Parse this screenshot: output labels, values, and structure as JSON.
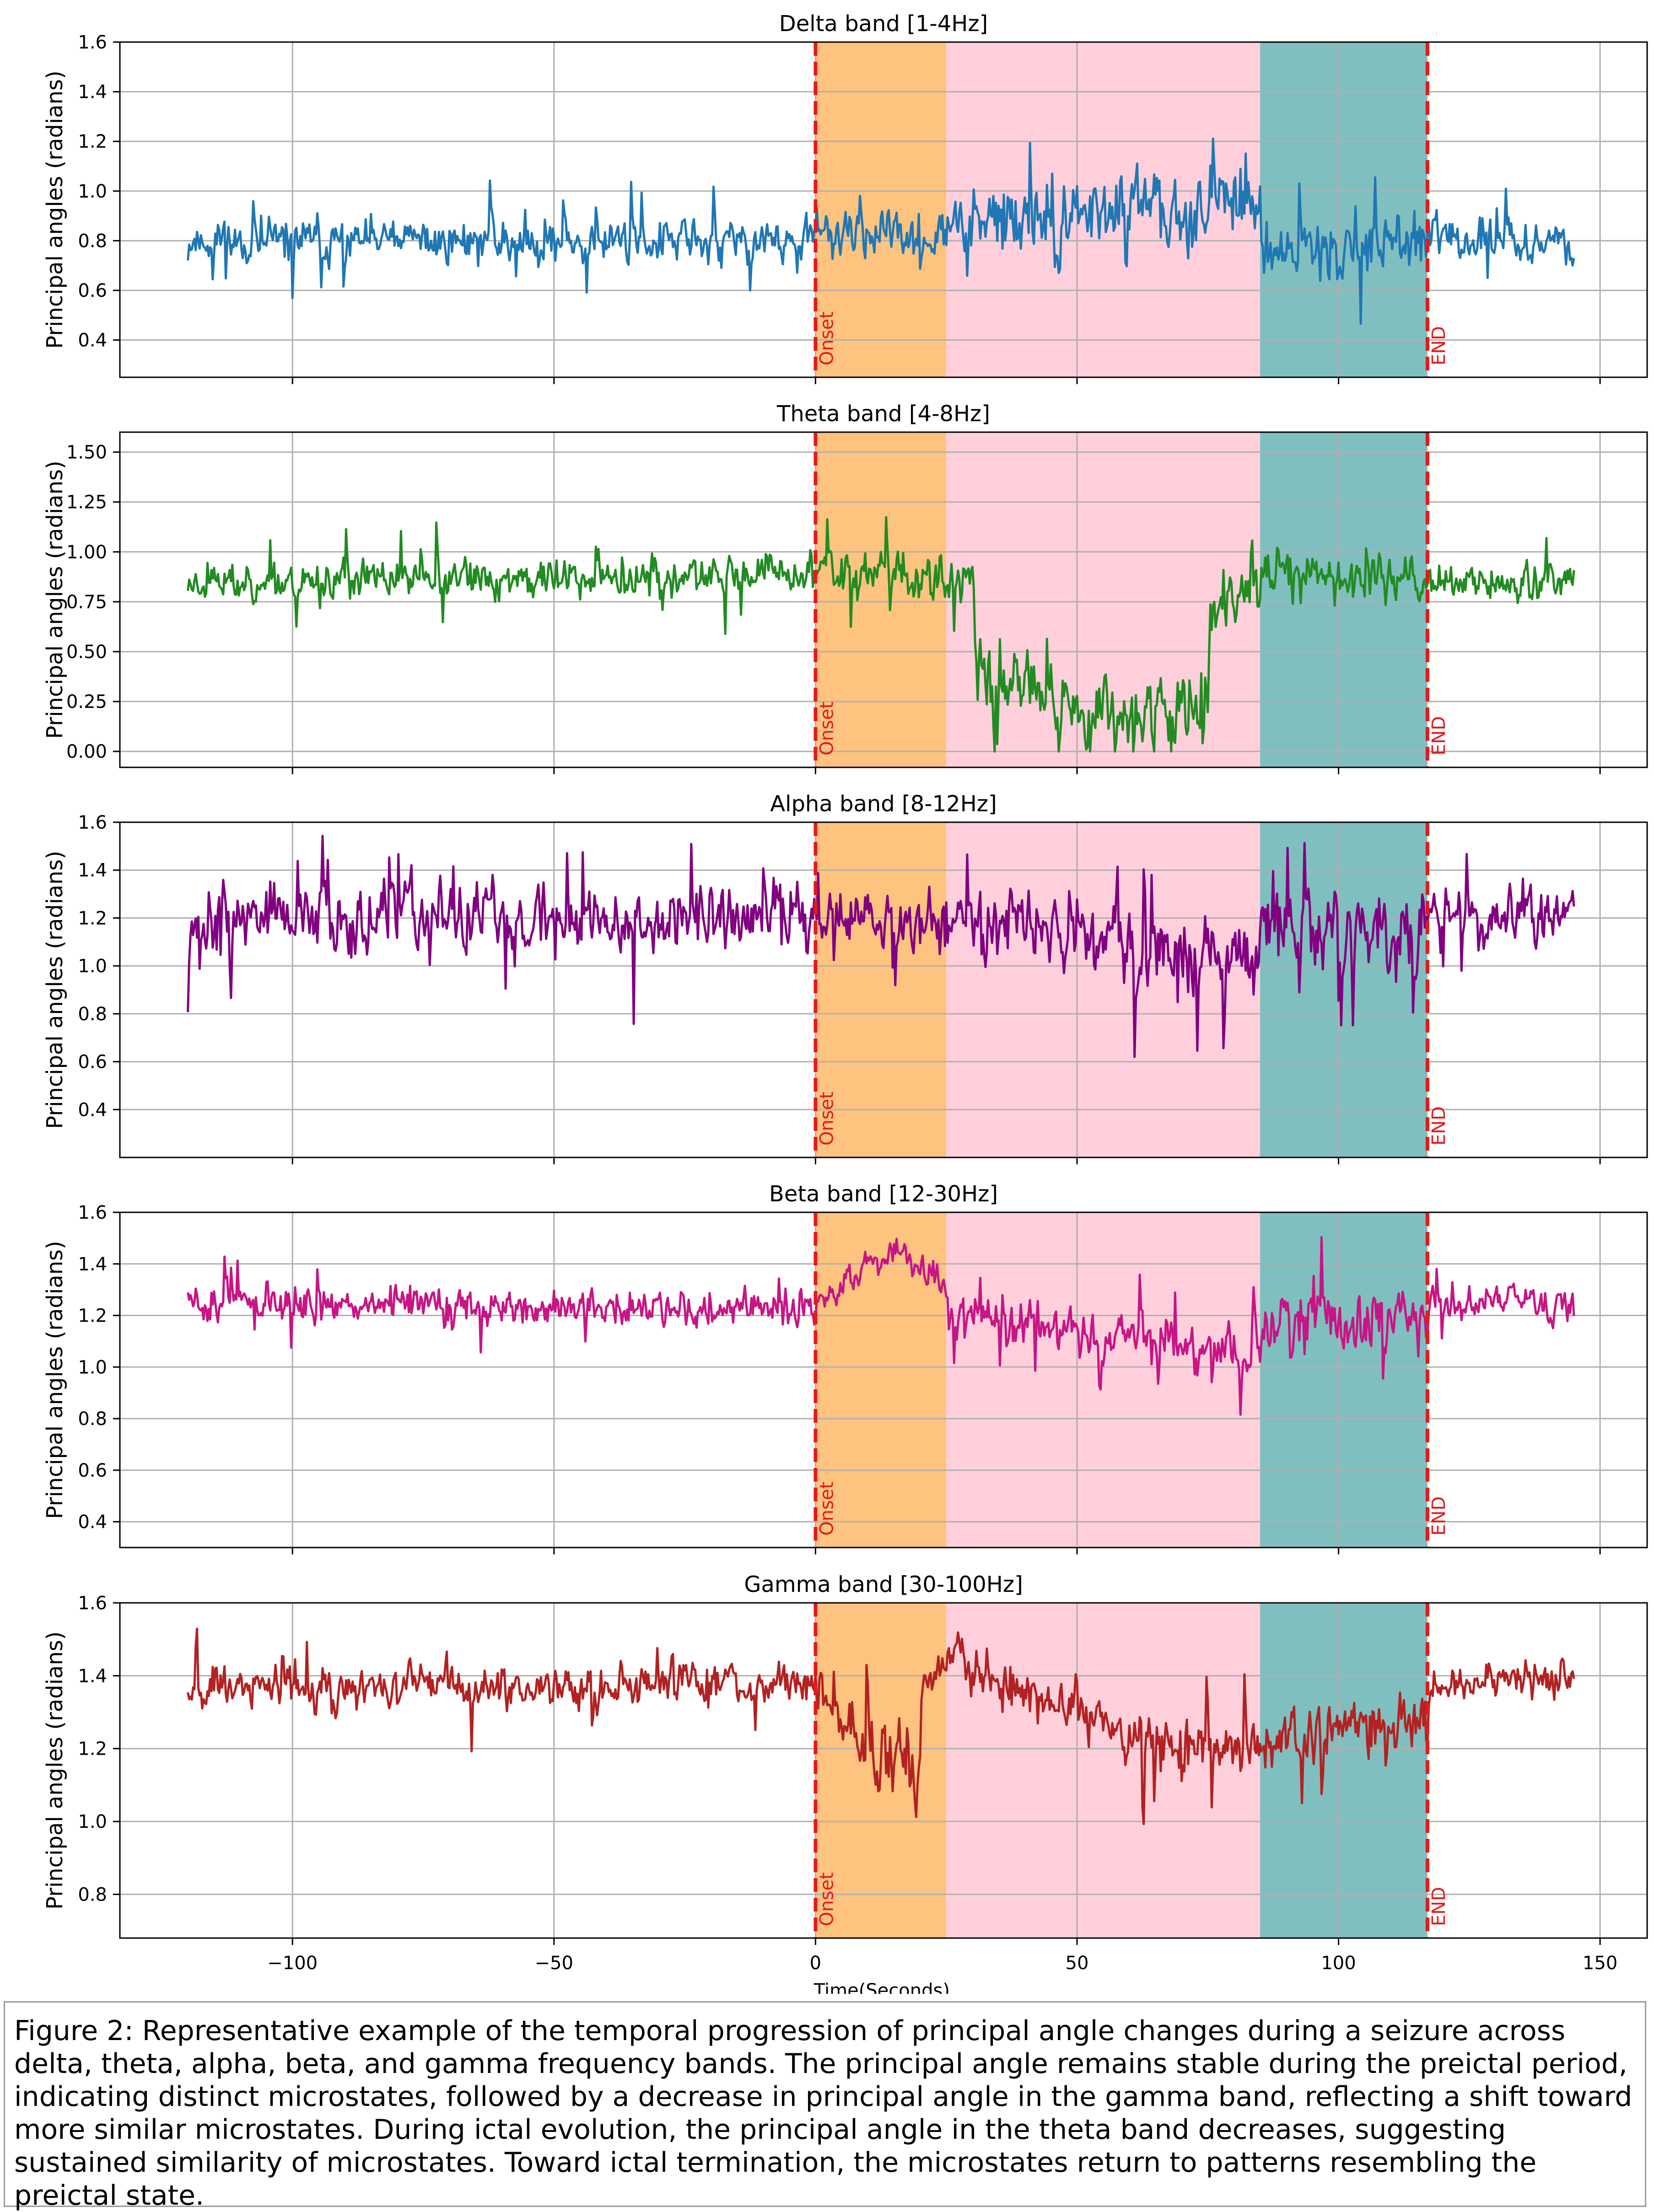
{
  "figure": {
    "caption": "Figure 2: Representative example of the temporal progression of principal angle changes during a seizure across delta, theta, alpha, beta, and gamma frequency bands. The principal angle remains stable during the preictal period, indicating distinct microstates, followed by a decrease in principal angle in the gamma band, reflecting a shift toward more similar microstates. During ictal evolution, the principal angle in the theta band decreases, suggesting sustained similarity of microstates. Toward ictal termination, the microstates return to patterns resembling the preictal state."
  },
  "chart_data": [
    {
      "type": "line",
      "title": "Delta band [1-4Hz]",
      "xlabel": "",
      "ylabel": "Principal angles (radians)",
      "color": "#1f77b4",
      "xlim": [
        -133,
        159
      ],
      "ylim": [
        0.25,
        1.6
      ],
      "yticks": [
        0.4,
        0.6,
        0.8,
        1.0,
        1.2,
        1.4,
        1.6
      ],
      "ytick_labels": [
        "0.4",
        "0.6",
        "0.8",
        "1.0",
        "1.2",
        "1.4",
        "1.6"
      ],
      "xticks": [
        -100,
        -50,
        0,
        50,
        100,
        150
      ],
      "xtick_labels": [],
      "grid": true,
      "shaded_regions": [
        {
          "x0": 0,
          "x1": 25,
          "color": "#fdc37f"
        },
        {
          "x0": 25,
          "x1": 85,
          "color": "#ffd0dc"
        },
        {
          "x0": 85,
          "x1": 117,
          "color": "#80bfbf"
        }
      ],
      "vlines": [
        {
          "x": 0,
          "label": "Onset",
          "color": "#e31a1c"
        },
        {
          "x": 117,
          "label": "END",
          "color": "#e31a1c"
        }
      ],
      "series_profile": {
        "x_range": [
          -120,
          145
        ],
        "step": 0.25,
        "segments": [
          {
            "x0": -120,
            "x1": 0,
            "mean_start": 0.8,
            "mean_end": 0.8,
            "noise": 0.09,
            "spike_prob": 0.03,
            "spike_size": 0.35
          },
          {
            "x0": 0,
            "x1": 25,
            "mean_start": 0.82,
            "mean_end": 0.82,
            "noise": 0.09,
            "spike_prob": 0.02,
            "spike_size": 0.3
          },
          {
            "x0": 25,
            "x1": 50,
            "mean_start": 0.85,
            "mean_end": 0.9,
            "noise": 0.16,
            "spike_prob": 0.05,
            "spike_size": 0.4
          },
          {
            "x0": 50,
            "x1": 85,
            "mean_start": 0.92,
            "mean_end": 0.95,
            "noise": 0.14,
            "spike_prob": 0.05,
            "spike_size": 0.4
          },
          {
            "x0": 85,
            "x1": 117,
            "mean_start": 0.75,
            "mean_end": 0.8,
            "noise": 0.12,
            "spike_prob": 0.04,
            "spike_size": 0.35
          },
          {
            "x0": 117,
            "x1": 145,
            "mean_start": 0.8,
            "mean_end": 0.8,
            "noise": 0.09,
            "spike_prob": 0.03,
            "spike_size": 0.3
          }
        ],
        "min_value": 0.3,
        "max_value": 1.55,
        "seed": 11
      }
    },
    {
      "type": "line",
      "title": "Theta band [4-8Hz]",
      "xlabel": "",
      "ylabel": "Principal angles (radians)",
      "color": "#228b22",
      "xlim": [
        -133,
        159
      ],
      "ylim": [
        -0.08,
        1.6
      ],
      "yticks": [
        0.0,
        0.25,
        0.5,
        0.75,
        1.0,
        1.25,
        1.5
      ],
      "ytick_labels": [
        "0.00",
        "0.25",
        "0.50",
        "0.75",
        "1.00",
        "1.25",
        "1.50"
      ],
      "xticks": [
        -100,
        -50,
        0,
        50,
        100,
        150
      ],
      "xtick_labels": [],
      "grid": true,
      "shaded_regions": [
        {
          "x0": 0,
          "x1": 25,
          "color": "#fdc37f"
        },
        {
          "x0": 25,
          "x1": 85,
          "color": "#ffd0dc"
        },
        {
          "x0": 85,
          "x1": 117,
          "color": "#80bfbf"
        }
      ],
      "vlines": [
        {
          "x": 0,
          "label": "Onset",
          "color": "#e31a1c"
        },
        {
          "x": 117,
          "label": "END",
          "color": "#e31a1c"
        }
      ],
      "series_profile": {
        "x_range": [
          -120,
          145
        ],
        "step": 0.25,
        "segments": [
          {
            "x0": -120,
            "x1": 0,
            "mean_start": 0.85,
            "mean_end": 0.88,
            "noise": 0.1,
            "spike_prob": 0.03,
            "spike_size": 0.35
          },
          {
            "x0": 0,
            "x1": 30,
            "mean_start": 0.92,
            "mean_end": 0.85,
            "noise": 0.12,
            "spike_prob": 0.03,
            "spike_size": 0.4
          },
          {
            "x0": 30,
            "x1": 45,
            "mean_start": 0.4,
            "mean_end": 0.35,
            "noise": 0.22,
            "spike_prob": 0.05,
            "spike_size": 0.4
          },
          {
            "x0": 45,
            "x1": 75,
            "mean_start": 0.2,
            "mean_end": 0.22,
            "noise": 0.2,
            "spike_prob": 0.05,
            "spike_size": 0.4
          },
          {
            "x0": 75,
            "x1": 85,
            "mean_start": 0.7,
            "mean_end": 0.85,
            "noise": 0.15,
            "spike_prob": 0.04,
            "spike_size": 0.3
          },
          {
            "x0": 85,
            "x1": 117,
            "mean_start": 0.88,
            "mean_end": 0.88,
            "noise": 0.12,
            "spike_prob": 0.04,
            "spike_size": 0.35
          },
          {
            "x0": 117,
            "x1": 145,
            "mean_start": 0.85,
            "mean_end": 0.85,
            "noise": 0.1,
            "spike_prob": 0.03,
            "spike_size": 0.3
          }
        ],
        "min_value": 0.0,
        "max_value": 1.55,
        "seed": 23
      }
    },
    {
      "type": "line",
      "title": "Alpha band [8-12Hz]",
      "xlabel": "",
      "ylabel": "Principal angles (radians)",
      "color": "#800080",
      "xlim": [
        -133,
        159
      ],
      "ylim": [
        0.2,
        1.6
      ],
      "yticks": [
        0.4,
        0.6,
        0.8,
        1.0,
        1.2,
        1.4,
        1.6
      ],
      "ytick_labels": [
        "0.4",
        "0.6",
        "0.8",
        "1.0",
        "1.2",
        "1.4",
        "1.6"
      ],
      "xticks": [
        -100,
        -50,
        0,
        50,
        100,
        150
      ],
      "xtick_labels": [],
      "grid": true,
      "shaded_regions": [
        {
          "x0": 0,
          "x1": 25,
          "color": "#fdc37f"
        },
        {
          "x0": 25,
          "x1": 85,
          "color": "#ffd0dc"
        },
        {
          "x0": 85,
          "x1": 117,
          "color": "#80bfbf"
        }
      ],
      "vlines": [
        {
          "x": 0,
          "label": "Onset",
          "color": "#e31a1c"
        },
        {
          "x": 117,
          "label": "END",
          "color": "#e31a1c"
        }
      ],
      "series_profile": {
        "x_range": [
          -120,
          145
        ],
        "step": 0.25,
        "segments": [
          {
            "x0": -120,
            "x1": 0,
            "mean_start": 1.2,
            "mean_end": 1.2,
            "noise": 0.14,
            "spike_prob": 0.04,
            "spike_size": 0.45
          },
          {
            "x0": 0,
            "x1": 25,
            "mean_start": 1.22,
            "mean_end": 1.18,
            "noise": 0.12,
            "spike_prob": 0.03,
            "spike_size": 0.4
          },
          {
            "x0": 25,
            "x1": 60,
            "mean_start": 1.2,
            "mean_end": 1.15,
            "noise": 0.15,
            "spike_prob": 0.05,
            "spike_size": 0.5
          },
          {
            "x0": 60,
            "x1": 85,
            "mean_start": 1.0,
            "mean_end": 1.05,
            "noise": 0.18,
            "spike_prob": 0.06,
            "spike_size": 0.6
          },
          {
            "x0": 85,
            "x1": 117,
            "mean_start": 1.15,
            "mean_end": 1.15,
            "noise": 0.16,
            "spike_prob": 0.05,
            "spike_size": 0.5
          },
          {
            "x0": 117,
            "x1": 145,
            "mean_start": 1.2,
            "mean_end": 1.2,
            "noise": 0.13,
            "spike_prob": 0.03,
            "spike_size": 0.4
          }
        ],
        "min_value": 0.27,
        "max_value": 1.57,
        "seed": 37
      }
    },
    {
      "type": "line",
      "title": "Beta band [12-30Hz]",
      "xlabel": "",
      "ylabel": "Principal angles (radians)",
      "color": "#c71585",
      "xlim": [
        -133,
        159
      ],
      "ylim": [
        0.3,
        1.6
      ],
      "yticks": [
        0.4,
        0.6,
        0.8,
        1.0,
        1.2,
        1.4,
        1.6
      ],
      "ytick_labels": [
        "0.4",
        "0.6",
        "0.8",
        "1.0",
        "1.2",
        "1.4",
        "1.6"
      ],
      "xticks": [
        -100,
        -50,
        0,
        50,
        100,
        150
      ],
      "xtick_labels": [],
      "grid": true,
      "shaded_regions": [
        {
          "x0": 0,
          "x1": 25,
          "color": "#fdc37f"
        },
        {
          "x0": 25,
          "x1": 85,
          "color": "#ffd0dc"
        },
        {
          "x0": 85,
          "x1": 117,
          "color": "#80bfbf"
        }
      ],
      "vlines": [
        {
          "x": 0,
          "label": "Onset",
          "color": "#e31a1c"
        },
        {
          "x": 117,
          "label": "END",
          "color": "#e31a1c"
        }
      ],
      "series_profile": {
        "x_range": [
          -120,
          145
        ],
        "step": 0.25,
        "segments": [
          {
            "x0": -120,
            "x1": 0,
            "mean_start": 1.25,
            "mean_end": 1.22,
            "noise": 0.07,
            "spike_prob": 0.03,
            "spike_size": 0.2
          },
          {
            "x0": 0,
            "x1": 15,
            "mean_start": 1.25,
            "mean_end": 1.45,
            "noise": 0.06,
            "spike_prob": 0.02,
            "spike_size": 0.15
          },
          {
            "x0": 15,
            "x1": 25,
            "mean_start": 1.45,
            "mean_end": 1.3,
            "noise": 0.06,
            "spike_prob": 0.02,
            "spike_size": 0.15
          },
          {
            "x0": 25,
            "x1": 85,
            "mean_start": 1.2,
            "mean_end": 1.05,
            "noise": 0.09,
            "spike_prob": 0.04,
            "spike_size": 0.3
          },
          {
            "x0": 85,
            "x1": 117,
            "mean_start": 1.15,
            "mean_end": 1.2,
            "noise": 0.12,
            "spike_prob": 0.05,
            "spike_size": 0.35
          },
          {
            "x0": 117,
            "x1": 145,
            "mean_start": 1.25,
            "mean_end": 1.25,
            "noise": 0.07,
            "spike_prob": 0.02,
            "spike_size": 0.2
          }
        ],
        "min_value": 0.38,
        "max_value": 1.56,
        "seed": 51
      }
    },
    {
      "type": "line",
      "title": "Gamma band [30-100Hz]",
      "xlabel": "Time(Seconds)",
      "ylabel": "Principal angles (radians)",
      "color": "#b22222",
      "xlim": [
        -133,
        159
      ],
      "ylim": [
        0.68,
        1.6
      ],
      "yticks": [
        0.8,
        1.0,
        1.2,
        1.4,
        1.6
      ],
      "ytick_labels": [
        "0.8",
        "1.0",
        "1.2",
        "1.4",
        "1.6"
      ],
      "xticks": [
        -100,
        -50,
        0,
        50,
        100,
        150
      ],
      "xtick_labels": [
        "−100",
        "−50",
        "0",
        "50",
        "100",
        "150"
      ],
      "grid": true,
      "shaded_regions": [
        {
          "x0": 0,
          "x1": 25,
          "color": "#fdc37f"
        },
        {
          "x0": 25,
          "x1": 85,
          "color": "#ffd0dc"
        },
        {
          "x0": 85,
          "x1": 117,
          "color": "#80bfbf"
        }
      ],
      "vlines": [
        {
          "x": 0,
          "label": "Onset",
          "color": "#e31a1c"
        },
        {
          "x": 117,
          "label": "END",
          "color": "#e31a1c"
        }
      ],
      "series_profile": {
        "x_range": [
          -120,
          145
        ],
        "step": 0.25,
        "segments": [
          {
            "x0": -120,
            "x1": 0,
            "mean_start": 1.37,
            "mean_end": 1.38,
            "noise": 0.06,
            "spike_prob": 0.02,
            "spike_size": 0.18
          },
          {
            "x0": 0,
            "x1": 8,
            "mean_start": 1.35,
            "mean_end": 1.25,
            "noise": 0.07,
            "spike_prob": 0.02,
            "spike_size": 0.15
          },
          {
            "x0": 8,
            "x1": 20,
            "mean_start": 1.2,
            "mean_end": 1.15,
            "noise": 0.1,
            "spike_prob": 0.04,
            "spike_size": 0.25
          },
          {
            "x0": 20,
            "x1": 28,
            "mean_start": 1.35,
            "mean_end": 1.48,
            "noise": 0.05,
            "spike_prob": 0.02,
            "spike_size": 0.1
          },
          {
            "x0": 28,
            "x1": 60,
            "mean_start": 1.42,
            "mean_end": 1.25,
            "noise": 0.07,
            "spike_prob": 0.03,
            "spike_size": 0.2
          },
          {
            "x0": 60,
            "x1": 85,
            "mean_start": 1.22,
            "mean_end": 1.2,
            "noise": 0.08,
            "spike_prob": 0.05,
            "spike_size": 0.3
          },
          {
            "x0": 85,
            "x1": 117,
            "mean_start": 1.22,
            "mean_end": 1.28,
            "noise": 0.08,
            "spike_prob": 0.04,
            "spike_size": 0.25
          },
          {
            "x0": 117,
            "x1": 145,
            "mean_start": 1.38,
            "mean_end": 1.4,
            "noise": 0.05,
            "spike_prob": 0.02,
            "spike_size": 0.12
          }
        ],
        "min_value": 0.72,
        "max_value": 1.56,
        "seed": 67
      }
    }
  ]
}
